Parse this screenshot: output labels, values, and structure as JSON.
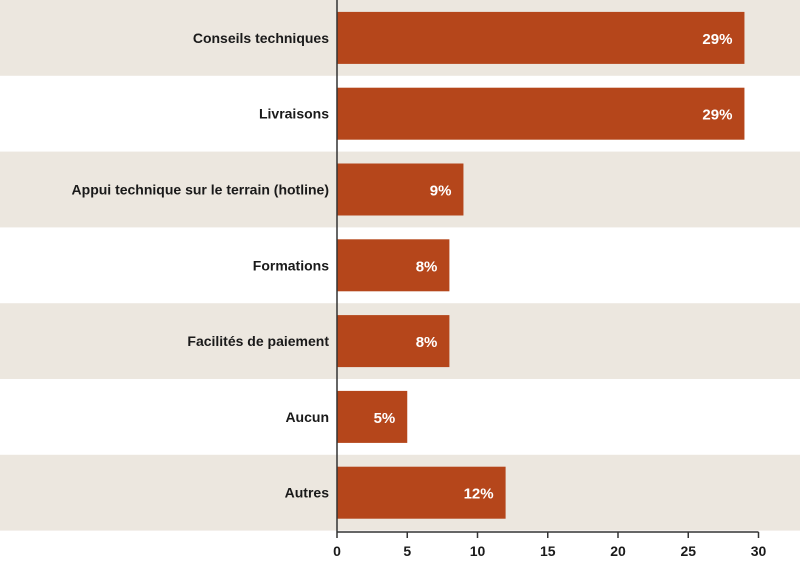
{
  "chart_data": {
    "type": "bar",
    "orientation": "horizontal",
    "title": "",
    "xlabel": "",
    "ylabel": "",
    "xlim": [
      0,
      30
    ],
    "x_ticks": [
      0,
      5,
      10,
      15,
      20,
      25,
      30
    ],
    "categories": [
      "Conseils techniques",
      "Livraisons",
      "Appui technique sur le terrain (hotline)",
      "Formations",
      "Facilités de paiement",
      "Aucun",
      "Autres"
    ],
    "values": [
      29,
      29,
      9,
      8,
      8,
      5,
      12
    ],
    "value_labels": [
      "29%",
      "29%",
      "9%",
      "8%",
      "8%",
      "5%",
      "12%"
    ],
    "grid": false,
    "legend": "none"
  },
  "colors": {
    "bar": "#B5461B",
    "band": "#ECE7DF",
    "background": "#FFFFFF",
    "axis": "#333333",
    "text": "#1A1A1A",
    "value_text": "#FFFFFF"
  }
}
